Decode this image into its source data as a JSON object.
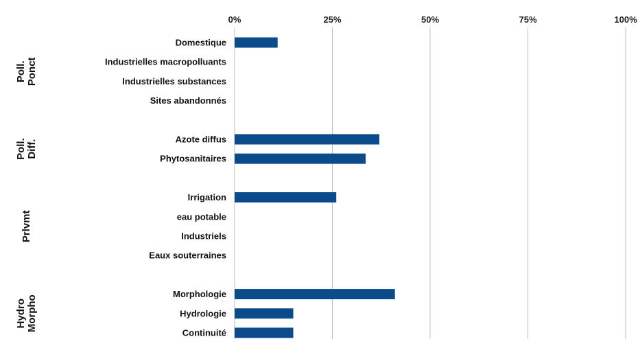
{
  "chart_data": {
    "type": "bar",
    "orientation": "horizontal",
    "xlim": [
      0,
      100
    ],
    "x_ticks": [
      "0%",
      "25%",
      "50%",
      "75%",
      "100%"
    ],
    "grid": true,
    "bar_color": "#0b4a8b",
    "groups": [
      {
        "label_lines": [
          "Poll.",
          "Ponct"
        ],
        "categories": [
          {
            "label": "Domestique",
            "value": 11
          },
          {
            "label": "Industrielles macropolluants",
            "value": 0
          },
          {
            "label": "Industrielles substances",
            "value": 0
          },
          {
            "label": "Sites abandonnés",
            "value": 0
          }
        ]
      },
      {
        "label_lines": [
          "Poll.",
          "Diff."
        ],
        "categories": [
          {
            "label": "Azote diffus",
            "value": 37
          },
          {
            "label": "Phytosanitaires",
            "value": 33.5
          }
        ]
      },
      {
        "label_lines": [
          "Prlvmt"
        ],
        "categories": [
          {
            "label": "Irrigation",
            "value": 26
          },
          {
            "label": "eau potable",
            "value": 0
          },
          {
            "label": "Industriels",
            "value": 0
          },
          {
            "label": "Eaux souterraines",
            "value": 0
          }
        ]
      },
      {
        "label_lines": [
          "Hydro",
          "Morpho"
        ],
        "categories": [
          {
            "label": "Morphologie",
            "value": 41
          },
          {
            "label": "Hydrologie",
            "value": 15
          },
          {
            "label": "Continuité",
            "value": 15
          }
        ]
      }
    ]
  }
}
